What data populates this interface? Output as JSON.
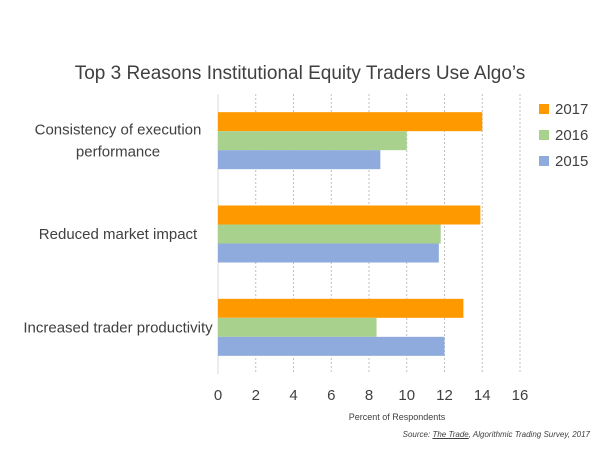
{
  "chart_data": {
    "type": "bar",
    "orientation": "horizontal",
    "title": "Top 3 Reasons Institutional Equity Traders Use Algo’s",
    "xlabel": "Percent of Respondents",
    "ylabel": "",
    "categories": [
      [
        "Consistency of execution",
        "performance"
      ],
      [
        "Reduced market impact"
      ],
      [
        "Increased trader productivity"
      ]
    ],
    "series": [
      {
        "name": "2017",
        "color": "#ff9900",
        "values": [
          14.0,
          13.9,
          13.0
        ]
      },
      {
        "name": "2016",
        "color": "#a9d18e",
        "values": [
          10.0,
          11.8,
          8.4
        ]
      },
      {
        "name": "2015",
        "color": "#8faadc",
        "values": [
          8.6,
          11.7,
          12.0
        ]
      }
    ],
    "xlim": [
      0,
      16
    ],
    "xticks": [
      0,
      2,
      4,
      6,
      8,
      10,
      12,
      14,
      16
    ],
    "grid": "vertical dashed",
    "legend": "right"
  },
  "source": {
    "prefix": "Source: ",
    "publication": "The Trade",
    "suffix": ", Algorithmic Trading Survey, 2017"
  }
}
